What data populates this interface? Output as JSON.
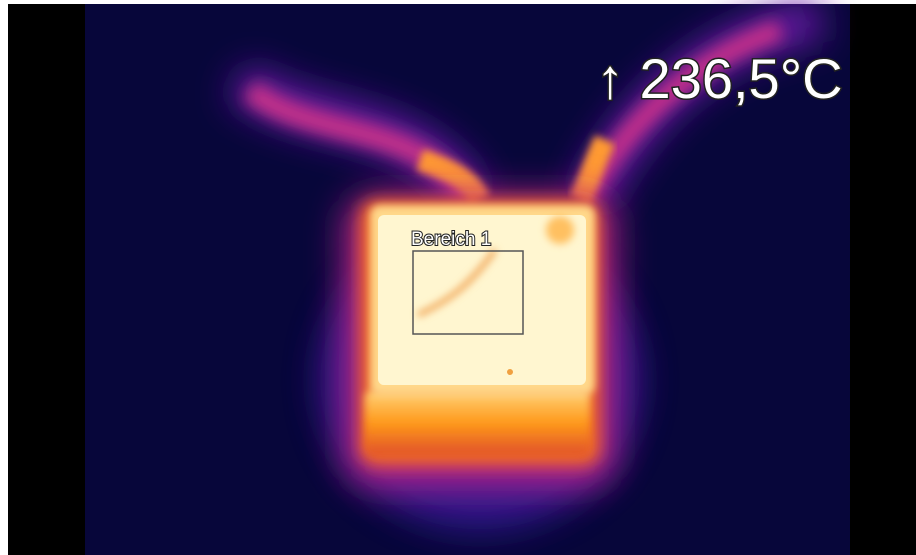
{
  "overlay": {
    "max_temperature": "↑ 236,5°C",
    "region_label": "Bereich 1"
  }
}
